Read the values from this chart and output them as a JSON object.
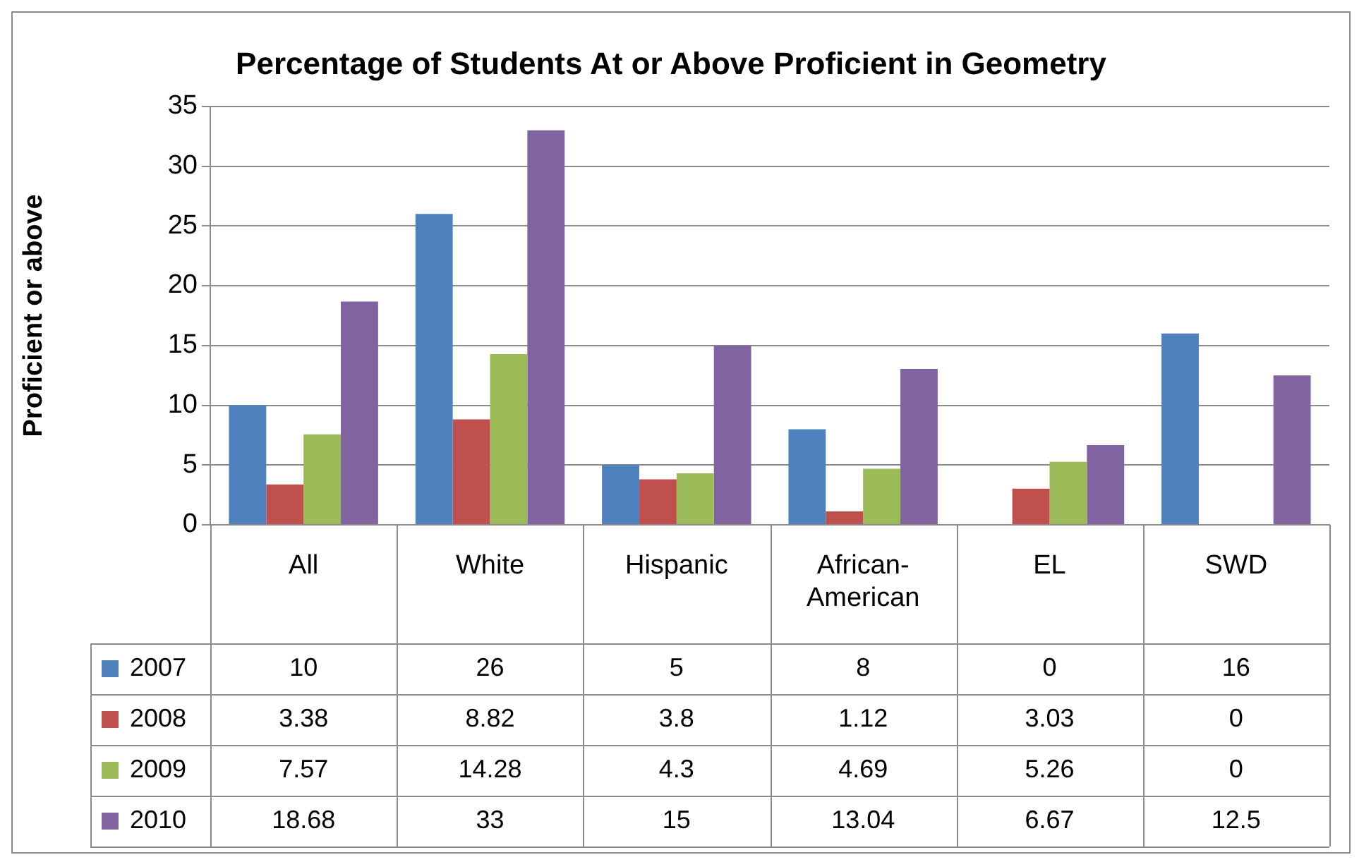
{
  "chart_data": {
    "type": "bar",
    "title": "Percentage of Students At or Above Proficient in Geometry",
    "ylabel": "Proficient or above",
    "categories": [
      "All",
      "White",
      "Hispanic",
      "African-American",
      "EL",
      "SWD"
    ],
    "series": [
      {
        "name": "2007",
        "color": "#4f81bd",
        "values": [
          10,
          26,
          5,
          8,
          0,
          16
        ]
      },
      {
        "name": "2008",
        "color": "#c0504d",
        "values": [
          3.38,
          8.82,
          3.8,
          1.12,
          3.03,
          0
        ]
      },
      {
        "name": "2009",
        "color": "#9bbb59",
        "values": [
          7.57,
          14.28,
          4.3,
          4.69,
          5.26,
          0
        ]
      },
      {
        "name": "2010",
        "color": "#8064a2",
        "values": [
          18.68,
          33,
          15,
          13.04,
          6.67,
          12.5
        ]
      }
    ],
    "ylim": [
      0,
      35
    ],
    "yticks": [
      0,
      5,
      10,
      15,
      20,
      25,
      30,
      35
    ],
    "grid": "y",
    "data_labels": true,
    "legend": "bottom left"
  }
}
